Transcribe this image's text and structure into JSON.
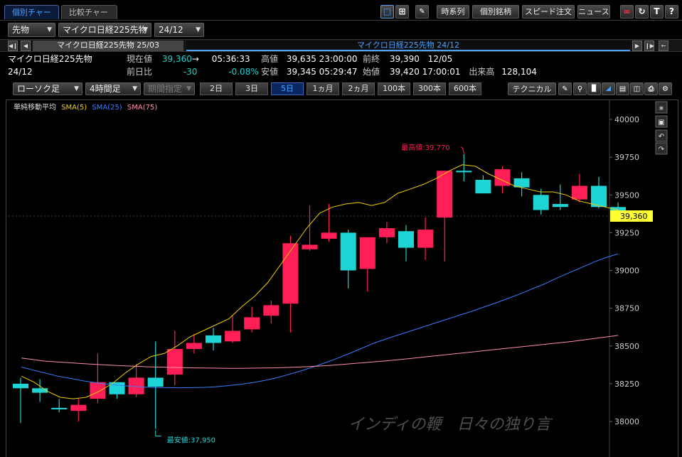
{
  "tabs": [
    "個別チャート",
    "比較チャート"
  ],
  "toolbar": [
    "時系列",
    "個別銘柄",
    "スピード注文",
    "ニュース"
  ],
  "toolbar_icons": [
    "single-chart-icon",
    "quad-chart-icon",
    "draw-icon",
    "link-icon",
    "refresh-icon",
    "text-icon",
    "help-icon"
  ],
  "selectors": {
    "market": "先物",
    "instrument": "マイクロ日経225先物",
    "contract": "24/12"
  },
  "contracts": {
    "prev": "マイクロ日経225先物 25/03",
    "current": "マイクロ日経225先物 24/12"
  },
  "quote": {
    "name": "マイクロ日経225先物",
    "month": "24/12",
    "current_label": "現在値",
    "current": "39,360",
    "current_arrow": "→",
    "current_time": "05:36:33",
    "high_label": "高値",
    "high": "39,635",
    "high_time": "23:00:00",
    "prev_close_label": "前終",
    "prev_close": "39,390",
    "prev_close_date": "12/05",
    "change_label": "前日比",
    "change": "-30",
    "change_pct": "-0.08%",
    "low_label": "安値",
    "low": "39,345",
    "low_time": "05:29:47",
    "open_label": "始値",
    "open": "39,420",
    "open_time": "17:00:01",
    "volume_label": "出来高",
    "volume": "128,104"
  },
  "controls": {
    "chart_style": "ローソク足",
    "interval": "4時間足",
    "period_select": "期間指定",
    "tech_button": "テクニカル"
  },
  "periods": [
    "2日",
    "3日",
    "5日",
    "1ヵ月",
    "2ヵ月",
    "100本",
    "300本",
    "600本"
  ],
  "active_period": "5日",
  "colors": {
    "up": "#ff1e56",
    "down": "#1fd4d4",
    "sma5": "#f0d000",
    "sma25": "#3b7dff",
    "sma75": "#ff8fa8",
    "price_tag": "#ffff33",
    "accent": "#4aa3ff"
  },
  "chart_data": {
    "type": "candlestick",
    "legend_title": "単純移動平均",
    "series": [
      {
        "name": "SMA(5)",
        "color": "#f0d000",
        "values": [
          38300,
          38260,
          38200,
          38160,
          38150,
          38160,
          38200,
          38250,
          38320,
          38380,
          38430,
          38450,
          38500,
          38560,
          38600,
          38640,
          38680,
          38760,
          38830,
          38920,
          39040,
          39160,
          39280,
          39380,
          39420,
          39440,
          39450,
          39430,
          39450,
          39510,
          39540,
          39570,
          39610,
          39660,
          39700,
          39690,
          39640,
          39600,
          39560,
          39540,
          39520,
          39520,
          39500,
          39460,
          39440,
          39420,
          39400
        ]
      },
      {
        "name": "SMA(25)",
        "color": "#3b7dff",
        "values": [
          38360,
          38340,
          38320,
          38300,
          38285,
          38270,
          38258,
          38248,
          38240,
          38233,
          38228,
          38225,
          38224,
          38223,
          38224,
          38226,
          38230,
          38237,
          38246,
          38258,
          38272,
          38290,
          38312,
          38336,
          38362,
          38390,
          38420,
          38452,
          38486,
          38520,
          38548,
          38574,
          38600,
          38626,
          38652,
          38678,
          38704,
          38730,
          38758,
          38786,
          38816,
          38846,
          38880,
          38912,
          38950,
          38985,
          39020,
          39055,
          39085,
          39110
        ]
      },
      {
        "name": "SMA(75)",
        "color": "#ff8fa8",
        "values": [
          38420,
          38410,
          38400,
          38395,
          38390,
          38385,
          38380,
          38376,
          38372,
          38368,
          38365,
          38362,
          38360,
          38358,
          38356,
          38355,
          38354,
          38353,
          38352,
          38352,
          38353,
          38354,
          38355,
          38357,
          38360,
          38363,
          38367,
          38372,
          38378,
          38384,
          38390,
          38396,
          38403,
          38410,
          38418,
          38426,
          38434,
          38442,
          38450,
          38458,
          38466,
          38474,
          38482,
          38490,
          38498,
          38506,
          38514,
          38522,
          38530,
          38540,
          38550,
          38560,
          38570
        ]
      }
    ],
    "candles": [
      {
        "o": 38250,
        "h": 38290,
        "l": 37990,
        "c": 38220
      },
      {
        "o": 38220,
        "h": 38280,
        "l": 38130,
        "c": 38190
      },
      {
        "o": 38090,
        "h": 38150,
        "l": 38060,
        "c": 38080
      },
      {
        "o": 38070,
        "h": 38150,
        "l": 38000,
        "c": 38110
      },
      {
        "o": 38150,
        "h": 38450,
        "l": 38120,
        "c": 38260
      },
      {
        "o": 38260,
        "h": 38260,
        "l": 38150,
        "c": 38180
      },
      {
        "o": 38180,
        "h": 38380,
        "l": 38160,
        "c": 38290
      },
      {
        "o": 38290,
        "h": 38530,
        "l": 37950,
        "c": 38230
      },
      {
        "o": 38310,
        "h": 38600,
        "l": 38240,
        "c": 38480
      },
      {
        "o": 38480,
        "h": 38580,
        "l": 38450,
        "c": 38520
      },
      {
        "o": 38570,
        "h": 38620,
        "l": 38470,
        "c": 38520
      },
      {
        "o": 38530,
        "h": 38700,
        "l": 38520,
        "c": 38600
      },
      {
        "o": 38610,
        "h": 38760,
        "l": 38590,
        "c": 38690
      },
      {
        "o": 38700,
        "h": 38800,
        "l": 38650,
        "c": 38770
      },
      {
        "o": 38780,
        "h": 39230,
        "l": 38590,
        "c": 39180
      },
      {
        "o": 39140,
        "h": 39430,
        "l": 39130,
        "c": 39170
      },
      {
        "o": 39210,
        "h": 39440,
        "l": 39190,
        "c": 39250
      },
      {
        "o": 39250,
        "h": 39270,
        "l": 38880,
        "c": 39000
      },
      {
        "o": 39010,
        "h": 39200,
        "l": 38860,
        "c": 39220
      },
      {
        "o": 39220,
        "h": 39320,
        "l": 39180,
        "c": 39280
      },
      {
        "o": 39260,
        "h": 39300,
        "l": 39060,
        "c": 39150
      },
      {
        "o": 39150,
        "h": 39350,
        "l": 39070,
        "c": 39270
      },
      {
        "o": 39350,
        "h": 39660,
        "l": 39060,
        "c": 39660
      },
      {
        "o": 39660,
        "h": 39770,
        "l": 39590,
        "c": 39650
      },
      {
        "o": 39600,
        "h": 39630,
        "l": 39510,
        "c": 39510
      },
      {
        "o": 39560,
        "h": 39690,
        "l": 39510,
        "c": 39670
      },
      {
        "o": 39610,
        "h": 39650,
        "l": 39490,
        "c": 39550
      },
      {
        "o": 39500,
        "h": 39540,
        "l": 39370,
        "c": 39400
      },
      {
        "o": 39440,
        "h": 39570,
        "l": 39400,
        "c": 39420
      },
      {
        "o": 39470,
        "h": 39640,
        "l": 39450,
        "c": 39560
      },
      {
        "o": 39560,
        "h": 39620,
        "l": 39410,
        "c": 39420
      },
      {
        "o": 39420,
        "h": 39450,
        "l": 39350,
        "c": 39360
      }
    ],
    "ylim": [
      37800,
      40150
    ],
    "y_ticks": [
      38000,
      38250,
      38500,
      38750,
      39000,
      39250,
      39500,
      39750,
      40000
    ],
    "last_price_label": "39,360",
    "high_annotation": "最高値:39,770",
    "low_annotation": "最安値:37,950",
    "watermark": "インディの鞭　日々の独り言",
    "side_icons": [
      "collapse-icon",
      "lock-icon",
      "undo-icon",
      "redo-icon"
    ]
  }
}
